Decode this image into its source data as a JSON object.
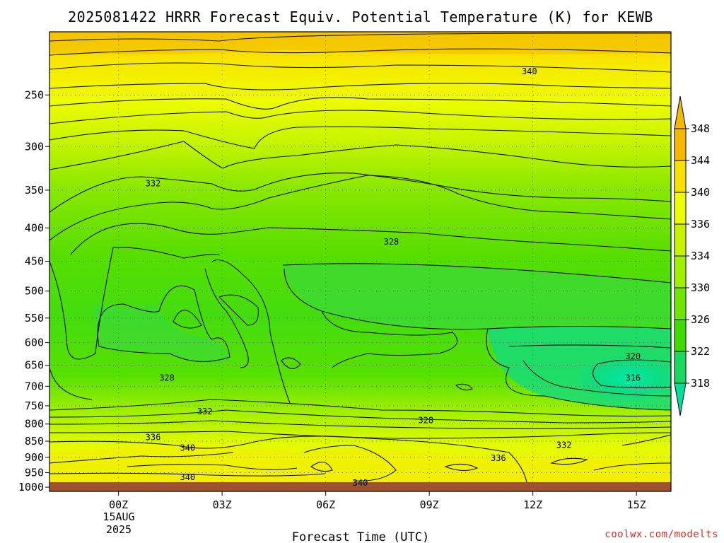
{
  "chart_data": {
    "type": "contour",
    "title": "2025081422 HRRR Forecast Equiv. Potential Temperature (K) for KEWB",
    "xlabel": "Forecast Time (UTC)",
    "x_ticks": [
      "00Z",
      "03Z",
      "06Z",
      "09Z",
      "12Z",
      "15Z"
    ],
    "x_tick_hours": [
      0,
      3,
      6,
      9,
      12,
      15
    ],
    "xlim_hours": [
      -2,
      16
    ],
    "date_label": [
      "15AUG",
      "2025"
    ],
    "y_ticks": [
      250,
      300,
      350,
      400,
      450,
      500,
      550,
      600,
      650,
      700,
      750,
      800,
      850,
      900,
      950,
      1000
    ],
    "ylim_hpa": [
      1015,
      200
    ],
    "y_scale": "log",
    "grid": true,
    "colorbar": {
      "labels": [
        348,
        344,
        340,
        336,
        334,
        330,
        326,
        322,
        318
      ],
      "colors": [
        "#f5b800",
        "#f8e100",
        "#eefc00",
        "#c8f200",
        "#a0f000",
        "#70e600",
        "#40dc00",
        "#18d860",
        "#00e09c"
      ]
    },
    "contour_labels": [
      {
        "text": "340",
        "hour": 11.9,
        "p": 230
      },
      {
        "text": "332",
        "hour": 1.0,
        "p": 342
      },
      {
        "text": "328",
        "hour": 7.9,
        "p": 420
      },
      {
        "text": "328",
        "hour": 1.4,
        "p": 680
      },
      {
        "text": "332",
        "hour": 2.5,
        "p": 765
      },
      {
        "text": "328",
        "hour": 8.9,
        "p": 790
      },
      {
        "text": "336",
        "hour": 1.0,
        "p": 838
      },
      {
        "text": "340",
        "hour": 2.0,
        "p": 870
      },
      {
        "text": "332",
        "hour": 12.9,
        "p": 862
      },
      {
        "text": "336",
        "hour": 11.0,
        "p": 902
      },
      {
        "text": "340",
        "hour": 2.0,
        "p": 965
      },
      {
        "text": "340",
        "hour": 7.0,
        "p": 985
      },
      {
        "text": "320",
        "hour": 14.9,
        "p": 630
      },
      {
        "text": "316",
        "hour": 14.9,
        "p": 680
      }
    ],
    "terrain_color": "#a0522d",
    "credit": "coolwx.com/modelts"
  }
}
